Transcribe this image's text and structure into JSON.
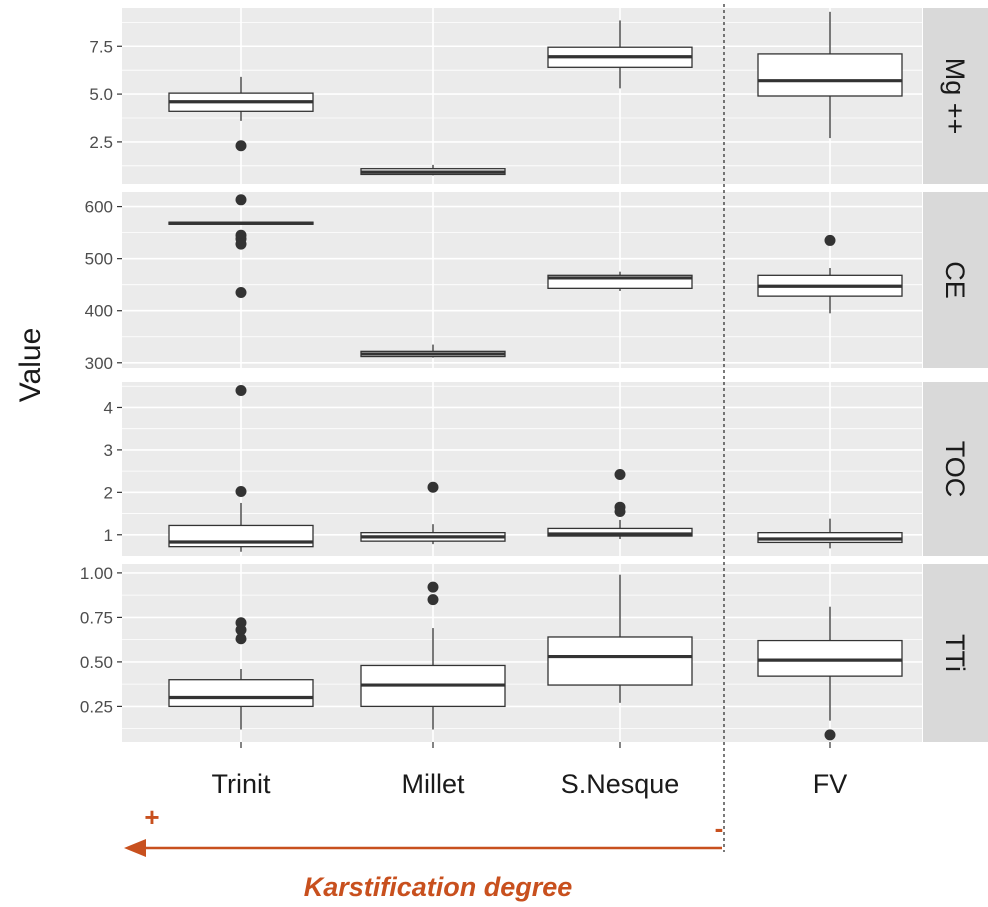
{
  "chart_data": {
    "type": "boxplot",
    "ylabel": "Value",
    "categories": [
      "Trinit",
      "Millet",
      "S.Nesque",
      "FV"
    ],
    "facet_direction": "vertical",
    "separator_after_category": "S.Nesque",
    "annotation": {
      "label": "Karstification degree",
      "plus": "+",
      "minus": "-",
      "arrow_direction": "left",
      "color": "#c8501e"
    },
    "panels": [
      {
        "name": "Mg ++",
        "ylim": [
          0.3,
          9.5
        ],
        "yticks": [
          2.5,
          5.0,
          7.5
        ],
        "ytick_labels": [
          "2.5",
          "5.0",
          "7.5"
        ],
        "boxes": [
          {
            "category": "Trinit",
            "min": 3.6,
            "q1": 4.1,
            "median": 4.6,
            "q3": 5.05,
            "max": 5.9,
            "outliers": [
              2.3
            ]
          },
          {
            "category": "Millet",
            "min": 0.75,
            "q1": 0.8,
            "median": 0.92,
            "q3": 1.1,
            "max": 1.3,
            "outliers": []
          },
          {
            "category": "S.Nesque",
            "min": 5.3,
            "q1": 6.4,
            "median": 6.95,
            "q3": 7.45,
            "max": 8.85,
            "outliers": []
          },
          {
            "category": "FV",
            "min": 2.7,
            "q1": 4.9,
            "median": 5.7,
            "q3": 7.1,
            "max": 9.3,
            "outliers": []
          }
        ]
      },
      {
        "name": "CE",
        "ylim": [
          290,
          628
        ],
        "yticks": [
          300,
          400,
          500,
          600
        ],
        "ytick_labels": [
          "300",
          "400",
          "500",
          "600"
        ],
        "boxes": [
          {
            "category": "Trinit",
            "min": 566,
            "q1": 566,
            "median": 568,
            "q3": 570,
            "max": 570,
            "outliers": [
              613,
              545,
              538,
              528,
              435
            ]
          },
          {
            "category": "Millet",
            "min": 310,
            "q1": 312,
            "median": 317,
            "q3": 322,
            "max": 335,
            "outliers": []
          },
          {
            "category": "S.Nesque",
            "min": 438,
            "q1": 443,
            "median": 463,
            "q3": 468,
            "max": 475,
            "outliers": []
          },
          {
            "category": "FV",
            "min": 395,
            "q1": 428,
            "median": 447,
            "q3": 468,
            "max": 482,
            "outliers": [
              535
            ]
          }
        ]
      },
      {
        "name": "TOC",
        "ylim": [
          0.5,
          4.6
        ],
        "yticks": [
          1,
          2,
          3,
          4
        ],
        "ytick_labels": [
          "1",
          "2",
          "3",
          "4"
        ],
        "boxes": [
          {
            "category": "Trinit",
            "min": 0.6,
            "q1": 0.72,
            "median": 0.83,
            "q3": 1.22,
            "max": 1.75,
            "outliers": [
              2.02,
              4.4
            ]
          },
          {
            "category": "Millet",
            "min": 0.78,
            "q1": 0.85,
            "median": 0.95,
            "q3": 1.05,
            "max": 1.25,
            "outliers": [
              2.12
            ]
          },
          {
            "category": "S.Nesque",
            "min": 0.9,
            "q1": 0.97,
            "median": 1.02,
            "q3": 1.15,
            "max": 1.35,
            "outliers": [
              2.42,
              1.65,
              1.55
            ]
          },
          {
            "category": "FV",
            "min": 0.68,
            "q1": 0.82,
            "median": 0.9,
            "q3": 1.05,
            "max": 1.38,
            "outliers": []
          }
        ]
      },
      {
        "name": "TTi",
        "ylim": [
          0.05,
          1.05
        ],
        "yticks": [
          0.25,
          0.5,
          0.75,
          1.0
        ],
        "ytick_labels": [
          "0.25",
          "0.50",
          "0.75",
          "1.00"
        ],
        "boxes": [
          {
            "category": "Trinit",
            "min": 0.12,
            "q1": 0.25,
            "median": 0.3,
            "q3": 0.4,
            "max": 0.46,
            "outliers": [
              0.72,
              0.68,
              0.63
            ]
          },
          {
            "category": "Millet",
            "min": 0.12,
            "q1": 0.25,
            "median": 0.37,
            "q3": 0.48,
            "max": 0.69,
            "outliers": [
              0.92,
              0.85
            ]
          },
          {
            "category": "S.Nesque",
            "min": 0.27,
            "q1": 0.37,
            "median": 0.53,
            "q3": 0.64,
            "max": 0.99,
            "outliers": []
          },
          {
            "category": "FV",
            "min": 0.17,
            "q1": 0.42,
            "median": 0.51,
            "q3": 0.62,
            "max": 0.81,
            "outliers": [
              0.09
            ]
          }
        ]
      }
    ]
  }
}
